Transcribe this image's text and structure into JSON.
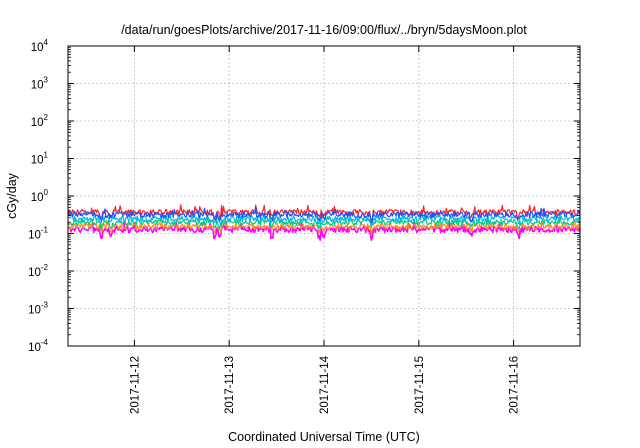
{
  "chart_data": {
    "type": "line",
    "title": "/data/run/goesPlots/archive/2017-11-16/09:00/flux/../bryn/5daysMoon.plot",
    "xlabel": "Coordinated Universal Time (UTC)",
    "ylabel": "cGy/day",
    "y_scale": "log",
    "ylim": [
      0.0001,
      10000
    ],
    "xlim_days": [
      0,
      5.4
    ],
    "x_ticks": [
      {
        "label": "2017-11-12",
        "day": 0.7
      },
      {
        "label": "2017-11-13",
        "day": 1.7
      },
      {
        "label": "2017-11-14",
        "day": 2.7
      },
      {
        "label": "2017-11-15",
        "day": 3.7
      },
      {
        "label": "2017-11-16",
        "day": 4.7
      }
    ],
    "y_ticks": [
      {
        "base": "10",
        "exp": "-4",
        "value": 0.0001
      },
      {
        "base": "10",
        "exp": "-3",
        "value": 0.001
      },
      {
        "base": "10",
        "exp": "-2",
        "value": 0.01
      },
      {
        "base": "10",
        "exp": "-1",
        "value": 0.1
      },
      {
        "base": "10",
        "exp": "0",
        "value": 1
      },
      {
        "base": "10",
        "exp": "1",
        "value": 10
      },
      {
        "base": "10",
        "exp": "2",
        "value": 100
      },
      {
        "base": "10",
        "exp": "3",
        "value": 1000
      },
      {
        "base": "10",
        "exp": "4",
        "value": 10000
      }
    ],
    "grid": true,
    "series": [
      {
        "color": "#ff00ff",
        "level": 0.13,
        "dip_depth": 0.45
      },
      {
        "color": "#ff8c1a",
        "level": 0.155,
        "dip_depth": 0.25
      },
      {
        "color": "#00cc88",
        "level": 0.2,
        "dip_depth": 0.25
      },
      {
        "color": "#00b8e6",
        "level": 0.25,
        "dip_depth": 0.25
      },
      {
        "color": "#ff2020",
        "level": 0.37,
        "dip_depth": 0.3
      },
      {
        "color": "#1e50ff",
        "level": 0.32,
        "dip_depth": 0.3
      }
    ],
    "dip_days": [
      0.35,
      0.45,
      1.55,
      1.6,
      2.15,
      2.65,
      2.7,
      3.2,
      4.25,
      4.75
    ]
  }
}
